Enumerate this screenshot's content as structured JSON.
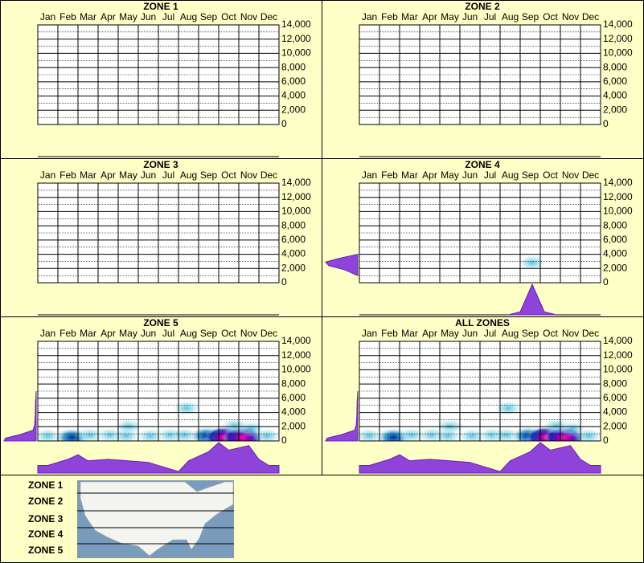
{
  "chart_data": [
    {
      "type": "heatmap",
      "title": "ZONE 1",
      "categories": [
        "Jan",
        "Feb",
        "Mar",
        "Apr",
        "May",
        "Jun",
        "Jul",
        "Aug",
        "Sep",
        "Oct",
        "Nov",
        "Dec"
      ],
      "xlim": [
        0,
        12
      ],
      "ylim": [
        0,
        14000
      ],
      "yticks": [
        0,
        {
          "value": 2000,
          "label": "2,000"
        },
        {
          "value": 4000,
          "label": "4,000"
        },
        {
          "value": 6000,
          "label": "6,000"
        },
        {
          "value": 8000,
          "label": "8,000"
        },
        {
          "value": 10000,
          "label": "10,000"
        },
        {
          "value": 12000,
          "label": "12,000"
        },
        {
          "value": 14000,
          "label": "14,000"
        }
      ],
      "minor_yticks": [
        1000,
        3000,
        5000,
        7000,
        9000,
        11000,
        13000
      ],
      "grid": true
    },
    {
      "type": "heatmap",
      "title": "ZONE 2",
      "categories": [
        "Jan",
        "Feb",
        "Mar",
        "Apr",
        "May",
        "Jun",
        "Jul",
        "Aug",
        "Sep",
        "Oct",
        "Nov",
        "Dec"
      ],
      "xlim": [
        0,
        12
      ],
      "ylim": [
        0,
        14000
      ],
      "yticks": [
        0,
        {
          "value": 2000,
          "label": "2,000"
        },
        {
          "value": 4000,
          "label": "4,000"
        },
        {
          "value": 6000,
          "label": "6,000"
        },
        {
          "value": 8000,
          "label": "8,000"
        },
        {
          "value": 10000,
          "label": "10,000"
        },
        {
          "value": 12000,
          "label": "12,000"
        },
        {
          "value": 14000,
          "label": "14,000"
        }
      ],
      "minor_yticks": [
        1000,
        3000,
        5000,
        7000,
        9000,
        11000,
        13000
      ],
      "grid": true
    },
    {
      "type": "heatmap",
      "title": "ZONE 3",
      "categories": [
        "Jan",
        "Feb",
        "Mar",
        "Apr",
        "May",
        "Jun",
        "Jul",
        "Aug",
        "Sep",
        "Oct",
        "Nov",
        "Dec"
      ],
      "xlim": [
        0,
        12
      ],
      "ylim": [
        0,
        14000
      ],
      "yticks": [
        0,
        {
          "value": 2000,
          "label": "2,000"
        },
        {
          "value": 4000,
          "label": "4,000"
        },
        {
          "value": 6000,
          "label": "6,000"
        },
        {
          "value": 8000,
          "label": "8,000"
        },
        {
          "value": 10000,
          "label": "10,000"
        },
        {
          "value": 12000,
          "label": "12,000"
        },
        {
          "value": 14000,
          "label": "14,000"
        }
      ],
      "minor_yticks": [
        1000,
        3000,
        5000,
        7000,
        9000,
        11000,
        13000
      ],
      "grid": true
    },
    {
      "type": "heatmap",
      "title": "ZONE 4",
      "categories": [
        "Jan",
        "Feb",
        "Mar",
        "Apr",
        "May",
        "Jun",
        "Jul",
        "Aug",
        "Sep",
        "Oct",
        "Nov",
        "Dec"
      ],
      "xlim": [
        0,
        12
      ],
      "ylim": [
        0,
        14000
      ],
      "yticks": [
        0,
        {
          "value": 2000,
          "label": "2,000"
        },
        {
          "value": 4000,
          "label": "4,000"
        },
        {
          "value": 6000,
          "label": "6,000"
        },
        {
          "value": 8000,
          "label": "8,000"
        },
        {
          "value": 10000,
          "label": "10,000"
        },
        {
          "value": 12000,
          "label": "12,000"
        },
        {
          "value": 14000,
          "label": "14,000"
        }
      ],
      "minor_yticks": [
        1000,
        3000,
        5000,
        7000,
        9000,
        11000,
        13000
      ],
      "grid": true,
      "hotspots": {
        "x": [
          8.6
        ],
        "y": [
          2800
        ],
        "level": [
          1
        ]
      },
      "month_profile": {
        "x": [
          7.4,
          8.0,
          8.3,
          8.6,
          8.9,
          9.2,
          9.8
        ],
        "values": [
          0,
          10,
          55,
          100,
          55,
          10,
          0
        ]
      },
      "elevation_profile": {
        "y": [
          1000,
          1800,
          2400,
          2900,
          3400,
          4000
        ],
        "values": [
          0,
          40,
          90,
          100,
          60,
          0
        ]
      }
    },
    {
      "type": "heatmap",
      "title": "ZONE 5",
      "categories": [
        "Jan",
        "Feb",
        "Mar",
        "Apr",
        "May",
        "Jun",
        "Jul",
        "Aug",
        "Sep",
        "Oct",
        "Nov",
        "Dec"
      ],
      "xlim": [
        0,
        12
      ],
      "ylim": [
        0,
        14000
      ],
      "yticks": [
        0,
        {
          "value": 2000,
          "label": "2,000"
        },
        {
          "value": 4000,
          "label": "4,000"
        },
        {
          "value": 6000,
          "label": "6,000"
        },
        {
          "value": 8000,
          "label": "8,000"
        },
        {
          "value": 10000,
          "label": "10,000"
        },
        {
          "value": 12000,
          "label": "12,000"
        },
        {
          "value": 14000,
          "label": "14,000"
        }
      ],
      "minor_yticks": [
        1000,
        3000,
        5000,
        7000,
        9000,
        11000,
        13000
      ],
      "grid": true,
      "hotspots": {
        "x": [
          0.5,
          1.7,
          2.6,
          3.6,
          4.5,
          4.4,
          5.6,
          6.6,
          7.4,
          7.3,
          8.4,
          9.3,
          10.2,
          10.6,
          9.8,
          11.4
        ],
        "y": [
          700,
          500,
          800,
          800,
          2000,
          700,
          700,
          800,
          4600,
          800,
          700,
          500,
          500,
          1700,
          2100,
          700
        ],
        "level": [
          1,
          2,
          1,
          1,
          1,
          1,
          1,
          1,
          1,
          1,
          2,
          3,
          3,
          1,
          1,
          1
        ]
      },
      "month_profile": {
        "x": [
          0,
          0.5,
          1.5,
          2.0,
          2.5,
          3.5,
          4.5,
          5.5,
          6.5,
          7.0,
          7.5,
          8.5,
          9.0,
          9.5,
          10.5,
          11.0,
          11.5,
          12
        ],
        "values": [
          25,
          25,
          45,
          60,
          40,
          45,
          40,
          35,
          15,
          5,
          40,
          70,
          100,
          75,
          90,
          45,
          25,
          25
        ]
      },
      "elevation_profile": {
        "y": [
          0,
          400,
          900,
          1500,
          2200,
          3500,
          5500,
          7000
        ],
        "values": [
          100,
          95,
          50,
          10,
          5,
          3,
          2,
          0
        ]
      }
    },
    {
      "type": "heatmap",
      "title": "ALL ZONES",
      "categories": [
        "Jan",
        "Feb",
        "Mar",
        "Apr",
        "May",
        "Jun",
        "Jul",
        "Aug",
        "Sep",
        "Oct",
        "Nov",
        "Dec"
      ],
      "xlim": [
        0,
        12
      ],
      "ylim": [
        0,
        14000
      ],
      "yticks": [
        0,
        {
          "value": 2000,
          "label": "2,000"
        },
        {
          "value": 4000,
          "label": "4,000"
        },
        {
          "value": 6000,
          "label": "6,000"
        },
        {
          "value": 8000,
          "label": "8,000"
        },
        {
          "value": 10000,
          "label": "10,000"
        },
        {
          "value": 12000,
          "label": "12,000"
        },
        {
          "value": 14000,
          "label": "14,000"
        }
      ],
      "minor_yticks": [
        1000,
        3000,
        5000,
        7000,
        9000,
        11000,
        13000
      ],
      "grid": true,
      "hotspots": {
        "x": [
          0.5,
          1.7,
          2.6,
          3.6,
          4.5,
          4.4,
          5.6,
          6.6,
          7.4,
          7.3,
          8.4,
          9.3,
          10.2,
          10.6,
          9.8,
          11.4
        ],
        "y": [
          700,
          500,
          800,
          800,
          2000,
          700,
          700,
          800,
          4600,
          800,
          700,
          500,
          500,
          1700,
          2100,
          700
        ],
        "level": [
          1,
          2,
          1,
          1,
          1,
          1,
          1,
          1,
          1,
          1,
          2,
          3,
          3,
          1,
          1,
          1
        ]
      },
      "month_profile": {
        "x": [
          0,
          0.5,
          1.5,
          2.0,
          2.5,
          3.5,
          4.5,
          5.5,
          6.5,
          7.0,
          7.5,
          8.5,
          9.0,
          9.5,
          10.5,
          11.0,
          11.5,
          12
        ],
        "values": [
          25,
          25,
          45,
          60,
          40,
          45,
          40,
          35,
          15,
          5,
          40,
          70,
          100,
          75,
          90,
          45,
          25,
          25
        ]
      },
      "elevation_profile": {
        "y": [
          0,
          400,
          900,
          1500,
          2200,
          3500,
          5500,
          7000
        ],
        "values": [
          100,
          95,
          50,
          10,
          5,
          3,
          2,
          0
        ]
      }
    }
  ],
  "map_legend": {
    "zones": [
      "ZONE 1",
      "ZONE 2",
      "ZONE 3",
      "ZONE 4",
      "ZONE 5"
    ]
  }
}
